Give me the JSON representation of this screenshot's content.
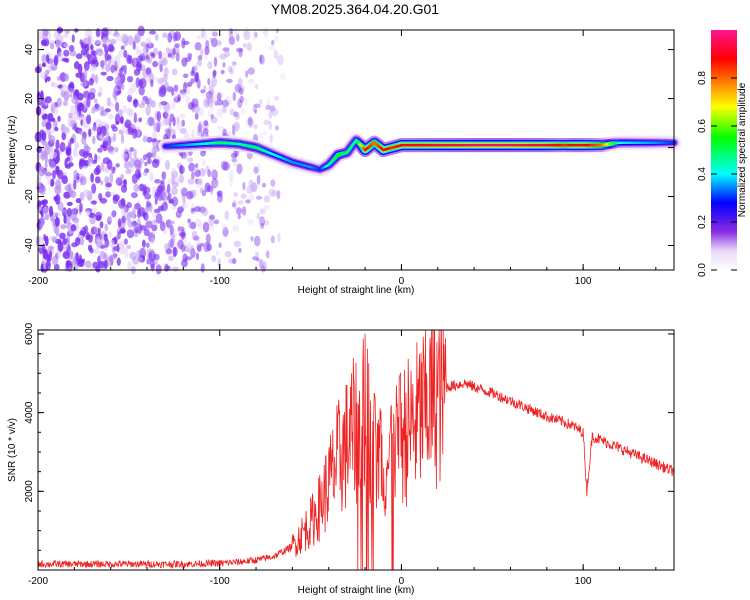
{
  "figure": {
    "title": "YM08.2025.364.04.20.G01"
  },
  "chart_data": [
    {
      "type": "heatmap",
      "title": "YM08.2025.364.04.20.G01",
      "xlabel": "Height of straight line (km)",
      "ylabel": "Frequency (Hz)",
      "xlim": [
        -200,
        150
      ],
      "ylim": [
        -50,
        48
      ],
      "xticks": [
        -200,
        -100,
        0,
        100
      ],
      "yticks": [
        -40,
        -20,
        0,
        20,
        40
      ],
      "colorbar": {
        "label": "Normalized spectral amplitude",
        "range": [
          0,
          1
        ],
        "ticks": [
          "0.0",
          "0.2",
          "0.4",
          "0.6",
          "0.8"
        ],
        "colors": [
          "#ffffff",
          "#8a2be2",
          "#0000ff",
          "#00ffff",
          "#00ff00",
          "#ffff00",
          "#ff8000",
          "#ff0000",
          "#ff1493"
        ]
      },
      "ridge": {
        "description_points_km": [
          -130,
          -110,
          -100,
          -90,
          -80,
          -70,
          -60,
          -50,
          -45,
          -40,
          -35,
          -30,
          -25,
          -20,
          -15,
          -10,
          -5,
          0,
          10,
          20,
          40,
          60,
          80,
          90,
          95,
          100,
          110,
          120,
          140,
          150
        ],
        "frequency_hz": [
          0.5,
          1.5,
          2.0,
          1.5,
          0,
          -3,
          -6,
          -8,
          -9,
          -7,
          -3,
          -2,
          3,
          -1,
          2,
          -1,
          0,
          1,
          1,
          1,
          1,
          1,
          1,
          1,
          1,
          1,
          1,
          2,
          2,
          2
        ],
        "amplitude": [
          0.3,
          0.4,
          0.5,
          0.45,
          0.5,
          0.4,
          0.35,
          0.35,
          0.3,
          0.45,
          0.55,
          0.5,
          0.45,
          0.9,
          0.8,
          0.9,
          0.85,
          0.9,
          0.9,
          0.92,
          0.95,
          0.95,
          0.92,
          0.85,
          0.9,
          0.9,
          0.8,
          0.4,
          0.35,
          0.3
        ]
      },
      "noise_region_km": [
        -200,
        -65
      ]
    },
    {
      "type": "line",
      "xlabel": "Height of straight line (km)",
      "ylabel": "SNR (10 * v/v)",
      "xlim": [
        -200,
        150
      ],
      "ylim": [
        0,
        6100
      ],
      "xticks": [
        -200,
        -100,
        0,
        100
      ],
      "yticks": [
        2000,
        4000,
        6000
      ],
      "series": [
        {
          "name": "SNR",
          "color": "#ee2222",
          "x": [
            -200,
            -180,
            -160,
            -140,
            -120,
            -100,
            -90,
            -80,
            -70,
            -60,
            -50,
            -45,
            -40,
            -35,
            -30,
            -25,
            -20,
            -15,
            -10,
            -5,
            0,
            5,
            10,
            15,
            20,
            25,
            30,
            35,
            40,
            50,
            60,
            70,
            80,
            90,
            95,
            100,
            102,
            105,
            110,
            120,
            130,
            140,
            150
          ],
          "y": [
            150,
            150,
            150,
            150,
            150,
            170,
            200,
            250,
            350,
            600,
            1200,
            1600,
            2200,
            2800,
            3200,
            3600,
            4000,
            3000,
            2600,
            2800,
            3400,
            3600,
            3900,
            4300,
            4500,
            4650,
            4700,
            4750,
            4650,
            4500,
            4300,
            4100,
            3900,
            3750,
            3650,
            3500,
            2000,
            3400,
            3300,
            3100,
            2900,
            2700,
            2500
          ]
        }
      ]
    }
  ]
}
